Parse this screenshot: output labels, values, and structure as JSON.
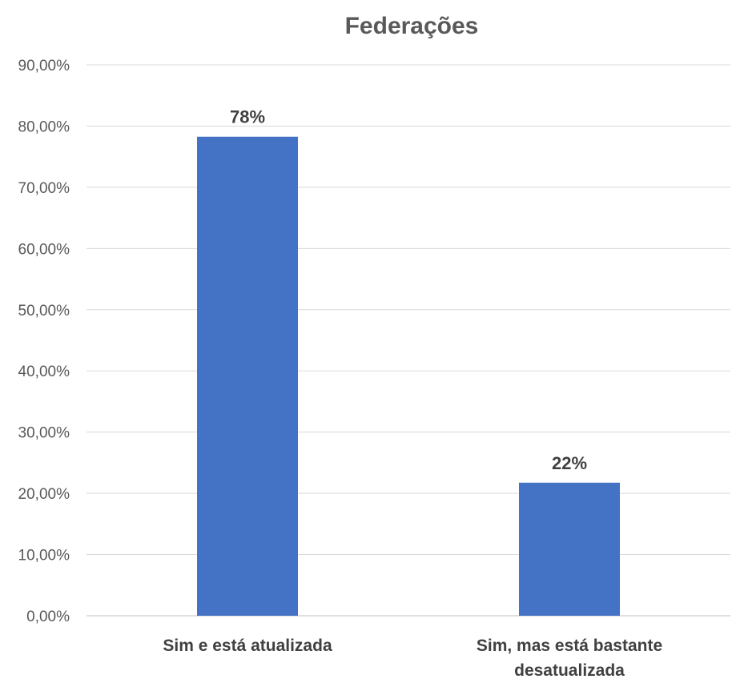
{
  "chart_data": {
    "type": "bar",
    "title": "Federações",
    "categories": [
      "Sim e está atualizada",
      "Sim, mas está bastante desatualizada"
    ],
    "category_lines": [
      [
        "Sim e está atualizada"
      ],
      [
        "Sim, mas está bastante",
        "desatualizada"
      ]
    ],
    "values": [
      78.26,
      21.74
    ],
    "data_labels": [
      "78%",
      "22%"
    ],
    "ylim": [
      0,
      90
    ],
    "yticks": [
      0,
      10,
      20,
      30,
      40,
      50,
      60,
      70,
      80,
      90
    ],
    "ytick_labels": [
      "0,00%",
      "10,00%",
      "20,00%",
      "30,00%",
      "40,00%",
      "50,00%",
      "60,00%",
      "70,00%",
      "80,00%",
      "90,00%"
    ],
    "xlabel": "",
    "ylabel": "",
    "grid": true,
    "legend": "none",
    "bar_color": "#4472c4"
  }
}
